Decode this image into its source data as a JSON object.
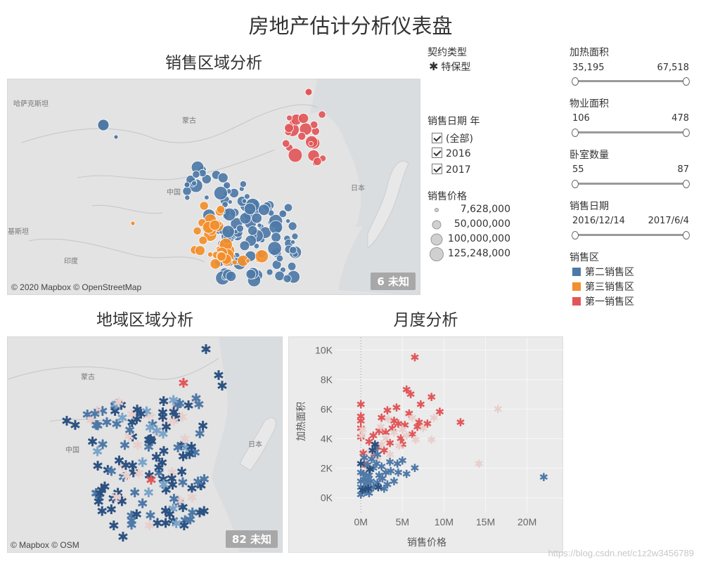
{
  "dashboard": {
    "title": "房地产估计分析仪表盘"
  },
  "colors": {
    "region2": "#4e79a7",
    "region3": "#f28e2b",
    "region1": "#e15759",
    "map_bg": "#e3e3e3",
    "chart_bg": "#ebebeb"
  },
  "sales_map": {
    "title": "销售区域分析",
    "labels": {
      "kazakhstan": "哈萨克斯坦",
      "mongolia": "蒙古",
      "china": "中国",
      "japan": "日本",
      "india": "印度",
      "pakistan": "基斯坦"
    },
    "attribution": "© 2020 Mapbox © OpenStreetMap",
    "unknown": "6 未知"
  },
  "regional_map": {
    "title": "地域区域分析",
    "labels": {
      "mongolia": "蒙古",
      "china": "中国",
      "japan": "日本"
    },
    "attribution": "© Mapbox © OSM",
    "unknown": "82 未知"
  },
  "monthly": {
    "title": "月度分析",
    "chart_data": {
      "type": "scatter",
      "xlabel": "销售价格",
      "ylabel": "加热面积",
      "x_ticks": [
        "0M",
        "5M",
        "10M",
        "15M",
        "20M"
      ],
      "y_ticks": [
        "0K",
        "2K",
        "4K",
        "6K",
        "8K",
        "10K"
      ],
      "xlim": [
        -1.2,
        23.5
      ],
      "ylim": [
        -300,
        10400
      ],
      "x_unit": "M",
      "series": [
        {
          "color": "#e15759",
          "points": [
            [
              6.5,
              9500
            ],
            [
              6.0,
              7000
            ],
            [
              7.2,
              6300
            ],
            [
              8.5,
              6800
            ],
            [
              9.5,
              5800
            ],
            [
              12.0,
              5100
            ],
            [
              5.5,
              7300
            ],
            [
              4.3,
              6100
            ],
            [
              3.2,
              5900
            ],
            [
              2.5,
              5400
            ],
            [
              5.8,
              5700
            ],
            [
              7.0,
              5100
            ],
            [
              8.0,
              5000
            ],
            [
              4.5,
              5000
            ],
            [
              3.8,
              4700
            ],
            [
              2.2,
              4500
            ],
            [
              1.5,
              4200
            ],
            [
              1.0,
              3800
            ],
            [
              0.0,
              6300
            ],
            [
              0.0,
              5500
            ],
            [
              0.0,
              5200
            ],
            [
              0.0,
              4700
            ],
            [
              0.0,
              4100
            ],
            [
              2.0,
              3400
            ],
            [
              3.5,
              3700
            ],
            [
              4.8,
              4000
            ],
            [
              6.2,
              4300
            ],
            [
              5.0,
              3600
            ],
            [
              2.8,
              3200
            ],
            [
              1.7,
              2900
            ],
            [
              0.3,
              3000
            ],
            [
              0.6,
              2200
            ],
            [
              3.0,
              4400
            ],
            [
              4.0,
              5200
            ],
            [
              5.3,
              4900
            ],
            [
              6.8,
              4800
            ]
          ]
        },
        {
          "color": "#e8cfcc",
          "points": [
            [
              8.8,
              5400
            ],
            [
              16.5,
              6000
            ],
            [
              14.2,
              2300
            ],
            [
              8.5,
              3900
            ],
            [
              7.5,
              4700
            ],
            [
              6.2,
              5400
            ],
            [
              5.5,
              4200
            ],
            [
              4.0,
              4400
            ],
            [
              3.0,
              4000
            ],
            [
              2.5,
              3600
            ],
            [
              1.2,
              3100
            ],
            [
              0.5,
              2700
            ],
            [
              0.2,
              4600
            ],
            [
              0.1,
              4200
            ],
            [
              6.6,
              3900
            ],
            [
              4.6,
              3500
            ],
            [
              3.5,
              2900
            ],
            [
              2.0,
              2700
            ],
            [
              0.8,
              1900
            ],
            [
              2.4,
              4800
            ],
            [
              3.3,
              5300
            ],
            [
              5.0,
              4600
            ]
          ]
        },
        {
          "color": "#4e79a7",
          "points": [
            [
              22.0,
              1400
            ],
            [
              6.5,
              2000
            ],
            [
              4.5,
              1700
            ],
            [
              5.0,
              2500
            ],
            [
              3.5,
              2400
            ],
            [
              3.0,
              1700
            ],
            [
              2.5,
              2100
            ],
            [
              2.0,
              2900
            ],
            [
              1.8,
              3400
            ],
            [
              1.5,
              2000
            ],
            [
              1.0,
              1500
            ],
            [
              0.5,
              1200
            ],
            [
              0.0,
              1700
            ],
            [
              0.0,
              1100
            ],
            [
              0.0,
              700
            ],
            [
              0.0,
              200
            ],
            [
              0.5,
              400
            ],
            [
              1.0,
              300
            ],
            [
              1.5,
              700
            ],
            [
              2.0,
              1000
            ],
            [
              2.6,
              1300
            ],
            [
              3.2,
              900
            ],
            [
              4.0,
              1100
            ],
            [
              5.5,
              1600
            ],
            [
              1.3,
              2600
            ],
            [
              0.8,
              2200
            ],
            [
              0.3,
              1600
            ],
            [
              0.7,
              800
            ],
            [
              1.2,
              1100
            ],
            [
              2.2,
              1500
            ],
            [
              2.8,
              600
            ],
            [
              3.6,
              1800
            ],
            [
              4.4,
              2300
            ],
            [
              1.9,
              2300
            ],
            [
              0.4,
              2700
            ]
          ]
        },
        {
          "color": "#2c4f7c",
          "points": [
            [
              1.7,
              3600
            ],
            [
              1.4,
              3200
            ],
            [
              0.0,
              2300
            ],
            [
              0.2,
              500
            ],
            [
              0.9,
              600
            ],
            [
              2.1,
              700
            ],
            [
              1.1,
              1900
            ]
          ]
        }
      ]
    }
  },
  "filters": {
    "contract": {
      "label": "契约类型",
      "value": "特保型"
    },
    "sale_year": {
      "label": "销售日期 年",
      "items": [
        "(全部)",
        "2016",
        "2017"
      ]
    },
    "price_size": {
      "label": "销售价格",
      "items": [
        "7,628,000",
        "50,000,000",
        "100,000,000",
        "125,248,000"
      ]
    },
    "heating": {
      "label": "加热面积",
      "min": "35,195",
      "max": "67,518"
    },
    "property": {
      "label": "物业面积",
      "min": "106",
      "max": "478"
    },
    "bedrooms": {
      "label": "卧室数量",
      "min": "55",
      "max": "87"
    },
    "sale_date": {
      "label": "销售日期",
      "min": "2016/12/14",
      "max": "2017/6/4"
    },
    "region": {
      "label": "销售区",
      "items": [
        "第二销售区",
        "第三销售区",
        "第一销售区"
      ]
    }
  },
  "watermark": "https://blog.csdn.net/c1z2w3456789"
}
